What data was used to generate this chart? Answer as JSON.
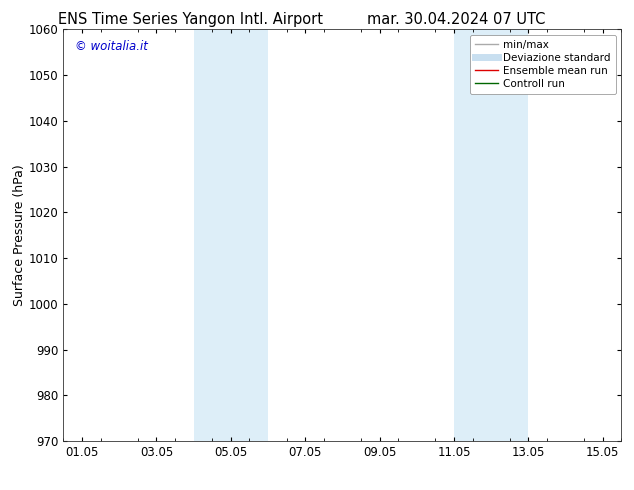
{
  "title_left": "ENS Time Series Yangon Intl. Airport",
  "title_right": "mar. 30.04.2024 07 UTC",
  "ylabel": "Surface Pressure (hPa)",
  "ylim": [
    970,
    1060
  ],
  "yticks": [
    970,
    980,
    990,
    1000,
    1010,
    1020,
    1030,
    1040,
    1050,
    1060
  ],
  "xtick_labels": [
    "01.05",
    "03.05",
    "05.05",
    "07.05",
    "09.05",
    "11.05",
    "13.05",
    "15.05"
  ],
  "xtick_positions": [
    1,
    3,
    5,
    7,
    9,
    11,
    13,
    15
  ],
  "xlim": [
    0.5,
    15.5
  ],
  "shaded_regions": [
    {
      "xstart": 4.0,
      "xend": 6.0,
      "color": "#ddeef8"
    },
    {
      "xstart": 11.0,
      "xend": 13.0,
      "color": "#ddeef8"
    }
  ],
  "watermark_text": "© woitalia.it",
  "watermark_color": "#0000cc",
  "legend_items": [
    {
      "label": "min/max",
      "color": "#aaaaaa",
      "lw": 1.0,
      "ls": "-"
    },
    {
      "label": "Deviazione standard",
      "color": "#c8dff0",
      "lw": 5,
      "ls": "-"
    },
    {
      "label": "Ensemble mean run",
      "color": "#dd0000",
      "lw": 1.0,
      "ls": "-"
    },
    {
      "label": "Controll run",
      "color": "#006600",
      "lw": 1.0,
      "ls": "-"
    }
  ],
  "bg_color": "#ffffff",
  "title_fontsize": 10.5,
  "tick_fontsize": 8.5,
  "ylabel_fontsize": 9,
  "watermark_fontsize": 8.5,
  "legend_fontsize": 7.5
}
